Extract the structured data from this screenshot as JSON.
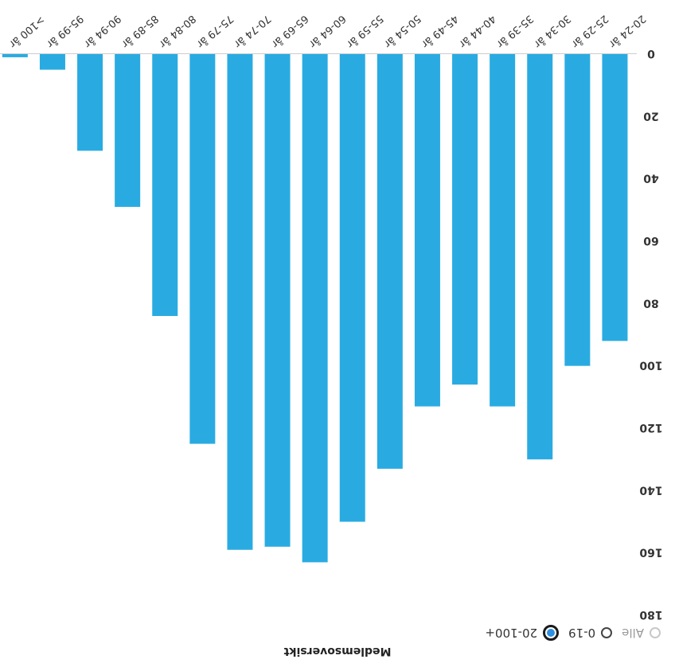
{
  "title": "Medlemsoversikt",
  "filters": [
    {
      "label": "Alle",
      "state": "disabled"
    },
    {
      "label": "0-19",
      "state": "unchecked"
    },
    {
      "label": "20-100+",
      "state": "checked"
    }
  ],
  "colors": {
    "bar": "#29abe2",
    "radio_selected": "#2f8fe0"
  },
  "chart_data": {
    "type": "bar",
    "categories": [
      "20-24 år",
      "25-29 år",
      "30-34 år",
      "35-39 år",
      "40-44 år",
      "45-49 år",
      "50-54 år",
      "55-59 år",
      "60-64 år",
      "65-69 år",
      "70-74 år",
      "75-79 år",
      "80-84 år",
      "85-89 år",
      "90-94 år",
      "95-99 år",
      ">100 år"
    ],
    "values": [
      92,
      100,
      130,
      113,
      106,
      113,
      133,
      150,
      163,
      158,
      159,
      125,
      84,
      49,
      31,
      5,
      1
    ],
    "yticks": [
      0,
      20,
      40,
      60,
      80,
      100,
      120,
      140,
      160,
      180
    ],
    "ylim": [
      0,
      180
    ],
    "title": "Medlemsoversikt",
    "xlabel": "",
    "ylabel": "",
    "grid": false
  }
}
